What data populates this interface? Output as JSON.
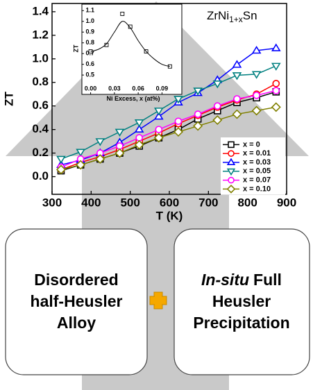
{
  "chart_data": [
    {
      "type": "line",
      "x_label": "T (K)",
      "y_label": "ZT",
      "annotation": {
        "base": "ZrNi",
        "sub": "1+x",
        "tail": "Sn"
      },
      "x": [
        323,
        373,
        423,
        473,
        523,
        573,
        623,
        673,
        723,
        773,
        823,
        873
      ],
      "xlim": [
        300,
        900
      ],
      "xticks": [
        300,
        400,
        500,
        600,
        700,
        800,
        900
      ],
      "ylim": [
        -0.15,
        1.47
      ],
      "yticks": [
        {
          "value": 0,
          "label": "0.0"
        },
        0.2,
        0.4,
        0.6,
        0.8,
        {
          "value": 1,
          "label": "1.0"
        },
        1.2,
        1.4
      ],
      "legend": "lower right",
      "series": [
        {
          "name": "x = 0",
          "color": "#000000",
          "marker": "square",
          "values": [
            0.05,
            0.1,
            0.15,
            0.2,
            0.26,
            0.33,
            0.4,
            0.49,
            0.56,
            0.63,
            0.67,
            0.72
          ]
        },
        {
          "name": "x = 0.01",
          "color": "#ff0000",
          "marker": "circle",
          "values": [
            0.06,
            0.12,
            0.17,
            0.23,
            0.3,
            0.37,
            0.45,
            0.52,
            0.59,
            0.65,
            0.7,
            0.79
          ]
        },
        {
          "name": "x = 0.03",
          "color": "#0000ff",
          "marker": "triangle-up",
          "values": [
            0.1,
            0.14,
            0.2,
            0.29,
            0.4,
            0.51,
            0.63,
            0.71,
            0.82,
            0.95,
            1.07,
            1.09
          ]
        },
        {
          "name": "x = 0.05",
          "color": "#008080",
          "marker": "triangle-down",
          "values": [
            0.15,
            0.21,
            0.3,
            0.38,
            0.46,
            0.56,
            0.66,
            0.73,
            0.79,
            0.86,
            0.87,
            0.94
          ]
        },
        {
          "name": "x = 0.07",
          "color": "#ff00ff",
          "marker": "circle",
          "values": [
            0.08,
            0.15,
            0.2,
            0.26,
            0.33,
            0.4,
            0.47,
            0.53,
            0.6,
            0.66,
            0.69,
            0.73
          ]
        },
        {
          "name": "x = 0.10",
          "color": "#808000",
          "marker": "diamond",
          "values": [
            0.06,
            0.1,
            0.15,
            0.2,
            0.27,
            0.33,
            0.38,
            0.43,
            0.48,
            0.53,
            0.56,
            0.59
          ]
        }
      ]
    },
    {
      "type": "scatter",
      "x_label": "Ni Excess, x (at%)",
      "y_label": "ZT",
      "xlim": [
        -0.011,
        0.115
      ],
      "xticks": [
        {
          "value": 0,
          "label": "0.00"
        },
        0.03,
        0.06,
        0.09
      ],
      "ylim": [
        0.32,
        1.16
      ],
      "yticks": [
        0.5,
        0.6,
        0.7,
        0.8,
        0.9,
        {
          "value": 1,
          "label": "1.0"
        },
        1.1
      ],
      "series": [
        {
          "mode": "markers",
          "color": "#000000",
          "x": [
            0,
            0.02,
            0.04,
            0.05,
            0.07,
            0.1
          ],
          "values": [
            0.72,
            0.78,
            1.07,
            0.95,
            0.72,
            0.58
          ]
        },
        {
          "mode": "line",
          "color": "#000000",
          "x": [
            0,
            0.01,
            0.02,
            0.03,
            0.04,
            0.05,
            0.06,
            0.07,
            0.08,
            0.09,
            0.1
          ],
          "values": [
            0.72,
            0.74,
            0.79,
            0.9,
            1.0,
            0.94,
            0.82,
            0.72,
            0.65,
            0.6,
            0.58
          ]
        }
      ]
    }
  ],
  "boxes": {
    "left": {
      "lines": [
        "Disordered",
        "half-Heusler",
        "Alloy"
      ]
    },
    "right": {
      "first_italic": "In-situ",
      "first_rest": "Full",
      "lines": [
        "Heusler",
        "Precipitation"
      ]
    }
  }
}
